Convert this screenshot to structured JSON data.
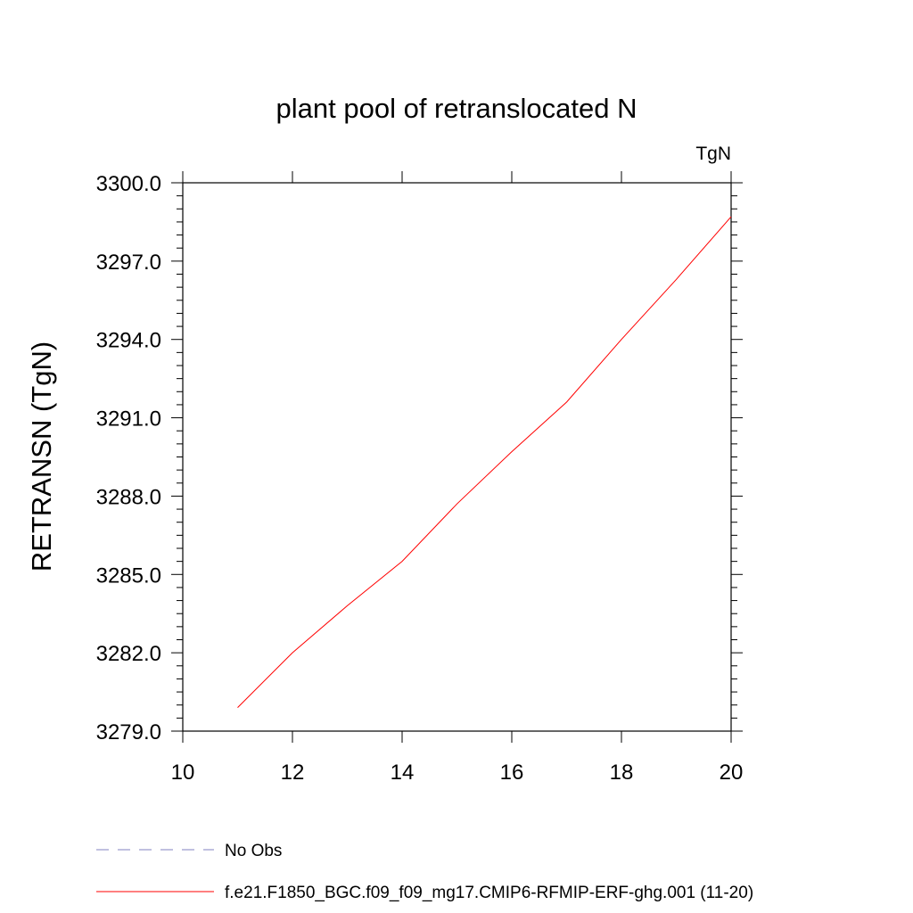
{
  "chart_data": {
    "type": "line",
    "title": "plant pool of retranslocated N",
    "units_label": "TgN",
    "ylabel": "RETRANSN  (TgN)",
    "xlabel": "",
    "xlim": [
      10,
      20
    ],
    "ylim": [
      3279.0,
      3300.0
    ],
    "x_ticks": [
      10,
      12,
      14,
      16,
      18,
      20
    ],
    "x_tick_labels": [
      "10",
      "12",
      "14",
      "16",
      "18",
      "20"
    ],
    "y_ticks": [
      3279.0,
      3282.0,
      3285.0,
      3288.0,
      3291.0,
      3294.0,
      3297.0,
      3300.0
    ],
    "y_tick_labels": [
      "3279.0",
      "3282.0",
      "3285.0",
      "3288.0",
      "3291.0",
      "3294.0",
      "3297.0",
      "3300.0"
    ],
    "y_minor_step": 0.5,
    "grid": false,
    "series": [
      {
        "name": "f.e21.F1850_BGC.f09_f09_mg17.CMIP6-RFMIP-ERF-ghg.001 (11-20)",
        "color": "#ff0000",
        "style": "solid",
        "x": [
          11,
          12,
          13,
          14,
          15,
          16,
          17,
          18,
          19,
          20
        ],
        "y": [
          3279.9,
          3282.0,
          3283.8,
          3285.5,
          3287.7,
          3289.7,
          3291.6,
          3294.0,
          3296.3,
          3298.7
        ]
      }
    ],
    "legend": {
      "placement": "bottom-left",
      "entries": [
        {
          "label": "No Obs",
          "color": "#8080c0",
          "style": "dashed"
        },
        {
          "label": "f.e21.F1850_BGC.f09_f09_mg17.CMIP6-RFMIP-ERF-ghg.001 (11-20)",
          "color": "#ff0000",
          "style": "solid"
        }
      ]
    }
  }
}
